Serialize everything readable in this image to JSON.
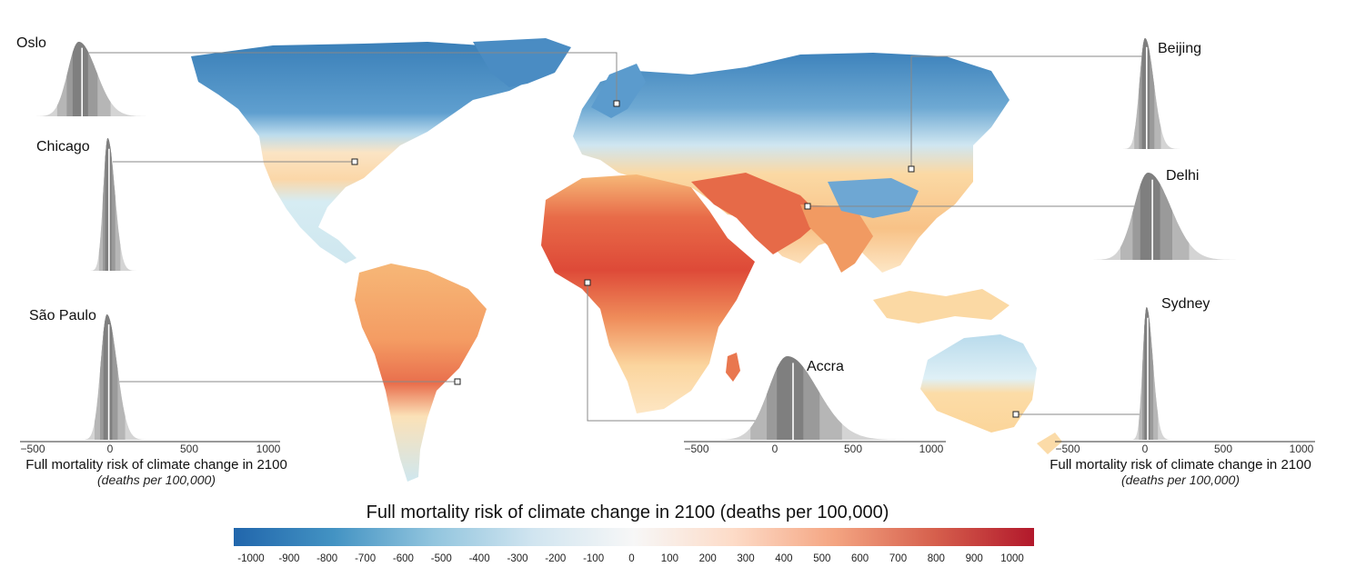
{
  "legend": {
    "title": "Full mortality risk of climate change in 2100 (deaths per 100,000)",
    "ticks": [
      "-1000",
      "-900",
      "-800",
      "-700",
      "-600",
      "-500",
      "-400",
      "-300",
      "-200",
      "-100",
      "0",
      "100",
      "200",
      "300",
      "400",
      "500",
      "600",
      "700",
      "800",
      "900",
      "1000"
    ],
    "colors": [
      "#2166ac",
      "#4393c3",
      "#92c5de",
      "#d1e5f0",
      "#f7f7f7",
      "#fddbc7",
      "#f4a582",
      "#d6604d",
      "#b2182b"
    ]
  },
  "cities": [
    {
      "id": "oslo",
      "name": "Oslo",
      "mode": -200,
      "spread": 70
    },
    {
      "id": "chicago",
      "name": "Chicago",
      "mode": -15,
      "spread": 28
    },
    {
      "id": "sao-paulo",
      "name": "São Paulo",
      "mode": -20,
      "spread": 40
    },
    {
      "id": "accra",
      "name": "Accra",
      "mode": 80,
      "spread": 120
    },
    {
      "id": "beijing",
      "name": "Beijing",
      "mode": 0,
      "spread": 35
    },
    {
      "id": "delhi",
      "name": "Delhi",
      "mode": 20,
      "spread": 90
    },
    {
      "id": "sydney",
      "name": "Sydney",
      "mode": 10,
      "spread": 25
    }
  ],
  "axes": [
    {
      "id": "left",
      "ticks": [
        "−500",
        "0",
        "500",
        "1000"
      ],
      "title": "Full mortality risk of climate change in 2100",
      "unit": "(deaths per 100,000)"
    },
    {
      "id": "middle",
      "ticks": [
        "−500",
        "0",
        "500",
        "1000"
      ]
    },
    {
      "id": "right",
      "ticks": [
        "−500",
        "0",
        "500",
        "1000"
      ],
      "title": "Full mortality risk of climate change in 2100",
      "unit": "(deaths per 100,000)"
    }
  ]
}
